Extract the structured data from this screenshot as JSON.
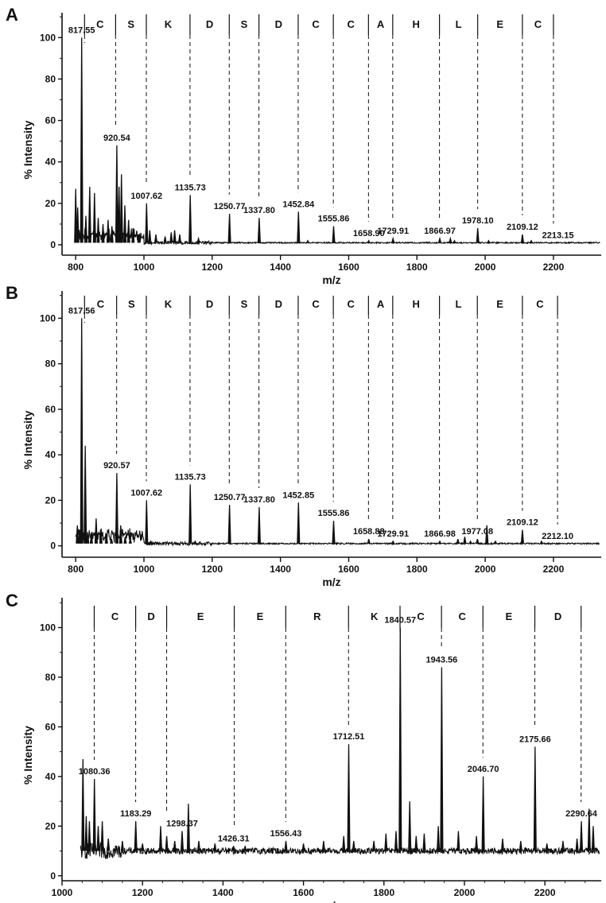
{
  "chart_data": [
    {
      "type": "line",
      "panel": "A",
      "xlabel": "m/z",
      "ylabel": "% Intensity",
      "xlim": [
        760,
        2340
      ],
      "ylim": [
        -5,
        112
      ],
      "xticks": [
        800,
        1000,
        1200,
        1400,
        1600,
        1800,
        2000,
        2200
      ],
      "yticks": [
        0,
        20,
        40,
        60,
        80,
        100
      ],
      "residues": [
        "C",
        "S",
        "K",
        "D",
        "S",
        "D",
        "C",
        "C",
        "A",
        "H",
        "L",
        "E",
        "C"
      ],
      "residue_bounds": [
        826,
        917,
        1007,
        1135,
        1250,
        1337,
        1452,
        1555,
        1658,
        1729,
        1866,
        1978,
        2109,
        2200
      ],
      "labeled_peaks": [
        {
          "x": 817.55,
          "y": 100,
          "label": "817.55"
        },
        {
          "x": 920.54,
          "y": 48,
          "label": "920.54"
        },
        {
          "x": 1007.62,
          "y": 20,
          "label": "1007.62"
        },
        {
          "x": 1135.73,
          "y": 24,
          "label": "1135.73"
        },
        {
          "x": 1250.77,
          "y": 15,
          "label": "1250.77"
        },
        {
          "x": 1337.8,
          "y": 13,
          "label": "1337.80"
        },
        {
          "x": 1452.84,
          "y": 16,
          "label": "1452.84"
        },
        {
          "x": 1555.86,
          "y": 9,
          "label": "1555.86"
        },
        {
          "x": 1658.9,
          "y": 2,
          "label": "1658.90"
        },
        {
          "x": 1729.91,
          "y": 3,
          "label": "1729.91"
        },
        {
          "x": 1866.97,
          "y": 3,
          "label": "1866.97"
        },
        {
          "x": 1978.1,
          "y": 8,
          "label": "1978.10"
        },
        {
          "x": 2109.12,
          "y": 5,
          "label": "2109.12"
        },
        {
          "x": 2213.15,
          "y": 1,
          "label": "2213.15"
        }
      ],
      "minor_peaks": [
        {
          "x": 800,
          "y": 27
        },
        {
          "x": 806,
          "y": 18
        },
        {
          "x": 830,
          "y": 14
        },
        {
          "x": 841,
          "y": 28
        },
        {
          "x": 855,
          "y": 25
        },
        {
          "x": 866,
          "y": 13
        },
        {
          "x": 880,
          "y": 10
        },
        {
          "x": 895,
          "y": 12
        },
        {
          "x": 906,
          "y": 9
        },
        {
          "x": 927,
          "y": 28
        },
        {
          "x": 934,
          "y": 34
        },
        {
          "x": 944,
          "y": 19
        },
        {
          "x": 955,
          "y": 12
        },
        {
          "x": 968,
          "y": 8
        },
        {
          "x": 985,
          "y": 5
        },
        {
          "x": 1017,
          "y": 7
        },
        {
          "x": 1035,
          "y": 5
        },
        {
          "x": 1062,
          "y": 4
        },
        {
          "x": 1080,
          "y": 6
        },
        {
          "x": 1090,
          "y": 7
        },
        {
          "x": 1105,
          "y": 5
        },
        {
          "x": 1160,
          "y": 3
        },
        {
          "x": 1480,
          "y": 2
        },
        {
          "x": 1898,
          "y": 3
        },
        {
          "x": 1910,
          "y": 2
        },
        {
          "x": 2010,
          "y": 2
        },
        {
          "x": 2135,
          "y": 2
        },
        {
          "x": 2250,
          "y": 1
        }
      ]
    },
    {
      "type": "line",
      "panel": "B",
      "xlabel": "m/z",
      "ylabel": "% Intensity",
      "xlim": [
        760,
        2340
      ],
      "ylim": [
        -5,
        112
      ],
      "xticks": [
        800,
        1000,
        1200,
        1400,
        1600,
        1800,
        2000,
        2200
      ],
      "yticks": [
        0,
        20,
        40,
        60,
        80,
        100
      ],
      "residues": [
        "C",
        "S",
        "K",
        "D",
        "S",
        "D",
        "C",
        "C",
        "A",
        "H",
        "L",
        "E",
        "C"
      ],
      "residue_bounds": [
        826,
        920,
        1007,
        1135,
        1250,
        1337,
        1452,
        1555,
        1658,
        1729,
        1866,
        1977,
        2109,
        2212
      ],
      "labeled_peaks": [
        {
          "x": 817.56,
          "y": 100,
          "label": "817.56"
        },
        {
          "x": 920.57,
          "y": 32,
          "label": "920.57"
        },
        {
          "x": 1007.62,
          "y": 20,
          "label": "1007.62"
        },
        {
          "x": 1135.73,
          "y": 27,
          "label": "1135.73"
        },
        {
          "x": 1250.77,
          "y": 18,
          "label": "1250.77"
        },
        {
          "x": 1337.8,
          "y": 17,
          "label": "1337.80"
        },
        {
          "x": 1452.85,
          "y": 19,
          "label": "1452.85"
        },
        {
          "x": 1555.86,
          "y": 11,
          "label": "1555.86"
        },
        {
          "x": 1658.88,
          "y": 3,
          "label": "1658.88"
        },
        {
          "x": 1729.91,
          "y": 2,
          "label": "1729.91"
        },
        {
          "x": 1866.98,
          "y": 2,
          "label": "1866.98"
        },
        {
          "x": 1977.08,
          "y": 3,
          "label": "1977.08"
        },
        {
          "x": 2109.12,
          "y": 7,
          "label": "2109.12"
        },
        {
          "x": 2212.1,
          "y": 1,
          "label": "2212.10"
        }
      ],
      "minor_peaks": [
        {
          "x": 805,
          "y": 9
        },
        {
          "x": 812,
          "y": 7
        },
        {
          "x": 828,
          "y": 44
        },
        {
          "x": 835,
          "y": 6
        },
        {
          "x": 846,
          "y": 5
        },
        {
          "x": 860,
          "y": 12
        },
        {
          "x": 874,
          "y": 7
        },
        {
          "x": 890,
          "y": 5
        },
        {
          "x": 905,
          "y": 3
        },
        {
          "x": 932,
          "y": 9
        },
        {
          "x": 945,
          "y": 4
        },
        {
          "x": 960,
          "y": 3
        },
        {
          "x": 1020,
          "y": 2
        },
        {
          "x": 1150,
          "y": 2
        },
        {
          "x": 1920,
          "y": 3
        },
        {
          "x": 1940,
          "y": 4
        },
        {
          "x": 1957,
          "y": 2
        },
        {
          "x": 2005,
          "y": 9
        },
        {
          "x": 2030,
          "y": 2
        },
        {
          "x": 2165,
          "y": 2
        }
      ]
    },
    {
      "type": "line",
      "panel": "C",
      "xlabel": "m/z",
      "ylabel": "% Intensity",
      "xlim": [
        1000,
        2340
      ],
      "ylim": [
        -2,
        112
      ],
      "xticks": [
        1000,
        1200,
        1400,
        1600,
        1800,
        2000,
        2200
      ],
      "yticks": [
        0,
        20,
        40,
        60,
        80,
        100
      ],
      "residues": [
        "C",
        "D",
        "E",
        "E",
        "R",
        "K",
        "C",
        "C",
        "E",
        "D"
      ],
      "residue_bounds": [
        1080,
        1183,
        1260,
        1428,
        1556,
        1712,
        1840,
        1943,
        2046,
        2175,
        2290
      ],
      "labeled_peaks": [
        {
          "x": 1080.36,
          "y": 39,
          "label": "1080.36"
        },
        {
          "x": 1183.29,
          "y": 22,
          "label": "1183.29"
        },
        {
          "x": 1298.37,
          "y": 18,
          "label": "1298.37"
        },
        {
          "x": 1426.31,
          "y": 12,
          "label": "1426.31"
        },
        {
          "x": 1556.43,
          "y": 14,
          "label": "1556.43"
        },
        {
          "x": 1712.51,
          "y": 53,
          "label": "1712.51"
        },
        {
          "x": 1840.57,
          "y": 100,
          "label": "1840.57"
        },
        {
          "x": 1943.56,
          "y": 84,
          "label": "1943.56"
        },
        {
          "x": 2046.7,
          "y": 40,
          "label": "2046.70"
        },
        {
          "x": 2175.66,
          "y": 52,
          "label": "2175.66"
        },
        {
          "x": 2290.64,
          "y": 22,
          "label": "2290.64"
        }
      ],
      "minor_peaks": [
        {
          "x": 1052,
          "y": 47
        },
        {
          "x": 1060,
          "y": 24
        },
        {
          "x": 1068,
          "y": 22
        },
        {
          "x": 1090,
          "y": 20
        },
        {
          "x": 1100,
          "y": 22
        },
        {
          "x": 1115,
          "y": 15
        },
        {
          "x": 1150,
          "y": 14
        },
        {
          "x": 1200,
          "y": 13
        },
        {
          "x": 1245,
          "y": 20
        },
        {
          "x": 1260,
          "y": 16
        },
        {
          "x": 1280,
          "y": 14
        },
        {
          "x": 1314,
          "y": 29
        },
        {
          "x": 1340,
          "y": 14
        },
        {
          "x": 1380,
          "y": 13
        },
        {
          "x": 1455,
          "y": 12
        },
        {
          "x": 1500,
          "y": 11
        },
        {
          "x": 1600,
          "y": 13
        },
        {
          "x": 1650,
          "y": 14
        },
        {
          "x": 1700,
          "y": 16
        },
        {
          "x": 1725,
          "y": 14
        },
        {
          "x": 1775,
          "y": 14
        },
        {
          "x": 1805,
          "y": 17
        },
        {
          "x": 1830,
          "y": 18
        },
        {
          "x": 1864,
          "y": 30
        },
        {
          "x": 1880,
          "y": 16
        },
        {
          "x": 1900,
          "y": 17
        },
        {
          "x": 1935,
          "y": 20
        },
        {
          "x": 1985,
          "y": 18
        },
        {
          "x": 2030,
          "y": 16
        },
        {
          "x": 2095,
          "y": 15
        },
        {
          "x": 2140,
          "y": 14
        },
        {
          "x": 2205,
          "y": 13
        },
        {
          "x": 2245,
          "y": 14
        },
        {
          "x": 2280,
          "y": 15
        },
        {
          "x": 2310,
          "y": 27
        },
        {
          "x": 2320,
          "y": 20
        }
      ]
    }
  ]
}
